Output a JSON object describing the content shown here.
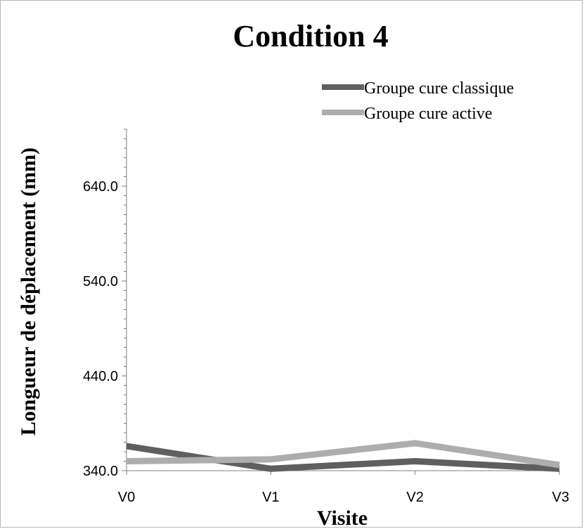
{
  "chart_data": {
    "type": "line",
    "title": "Condition 4",
    "xlabel": "Visite",
    "ylabel": "Longueur de déplacement (mm)",
    "categories": [
      "V0",
      "V1",
      "V2",
      "V3"
    ],
    "ylim": [
      340.0,
      700.0
    ],
    "yticks": [
      340.0,
      440.0,
      540.0,
      640.0
    ],
    "ytick_labels": [
      "340.0",
      "440.0",
      "540.0",
      "640.0"
    ],
    "minor_tick_step": 10,
    "grid": false,
    "legend_position": "top-right",
    "series": [
      {
        "name": "Groupe cure classique",
        "values": [
          366,
          342,
          350,
          342
        ],
        "color": "#5f5f5f"
      },
      {
        "name": "Groupe cure active",
        "values": [
          350,
          352,
          369,
          346
        ],
        "color": "#adadad"
      }
    ]
  }
}
